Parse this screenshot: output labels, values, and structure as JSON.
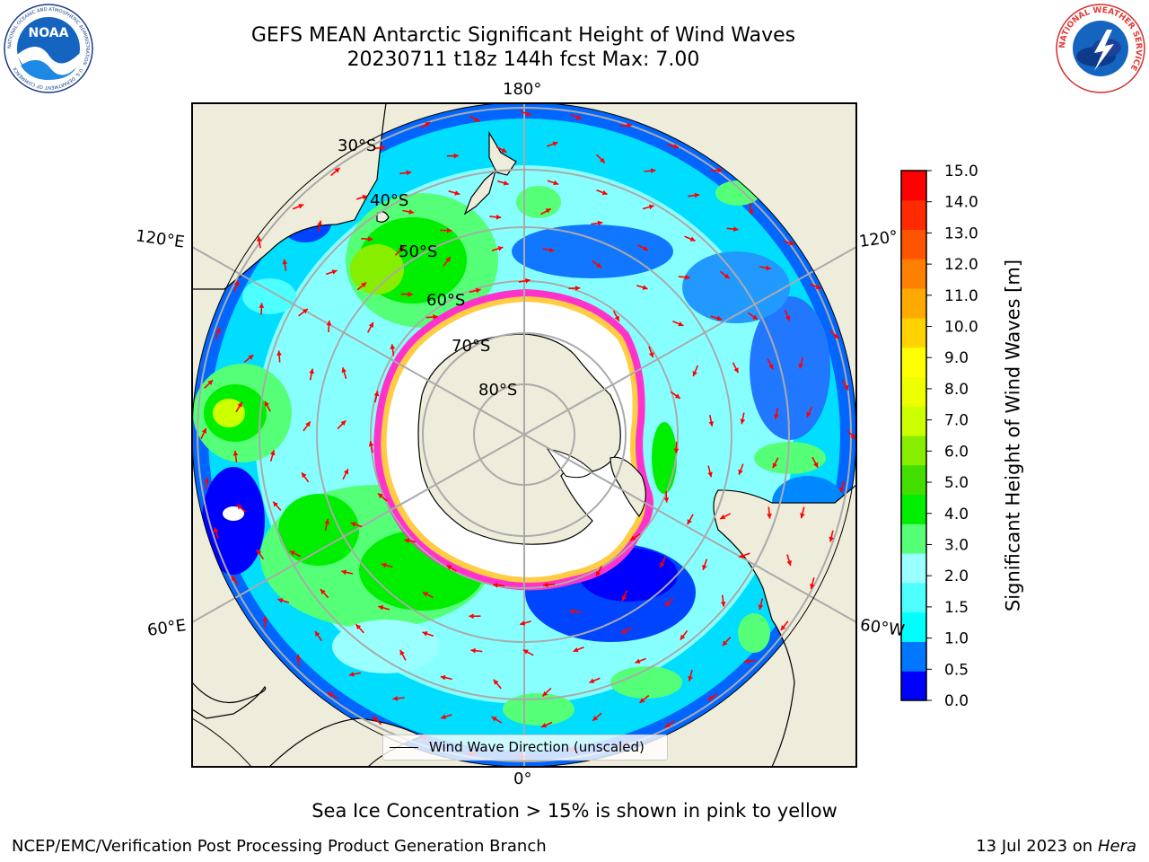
{
  "header": {
    "title_line1": "GEFS MEAN Antarctic Significant Height of Wind Waves",
    "title_line2": "20230711 t18z 144h fcst   Max: 7.00",
    "noaa_logo_text": "NOAA",
    "noaa_ring_text": "NATIONAL OCEANIC AND ATMOSPHERIC ADMINISTRATION · U.S. DEPARTMENT OF COMMERCE",
    "nws_ring_text": "NATIONAL WEATHER SERVICE"
  },
  "map": {
    "projection": "south-polar-stereographic",
    "longitude_labels": [
      "180°",
      "120°E",
      "120°",
      "60°E",
      "60°W",
      "0°"
    ],
    "latitude_labels": [
      "30°S",
      "40°S",
      "50°S",
      "60°S",
      "70°S",
      "80°S"
    ],
    "legend_text": "Wind Wave Direction (unscaled)",
    "colors": {
      "land": "#eeecda",
      "ice_free_ocean_high": "#00ff00",
      "arrow": "#ff0000",
      "sea_ice": "#ff33cc"
    }
  },
  "colorbar": {
    "label": "Significant Height of Wind Waves [m]",
    "tick_labels": [
      "0.0",
      "0.5",
      "1.0",
      "1.5",
      "2.0",
      "3.0",
      "4.0",
      "5.0",
      "6.0",
      "7.0",
      "8.0",
      "9.0",
      "10.0",
      "11.0",
      "12.0",
      "13.0",
      "14.0",
      "15.0"
    ],
    "colors": [
      "#0000ff",
      "#0077ff",
      "#00ffff",
      "#4dffff",
      "#99ffff",
      "#55ff77",
      "#00ee00",
      "#44dd00",
      "#88ee00",
      "#ccff00",
      "#eeff00",
      "#ffff00",
      "#ffd200",
      "#ffaa00",
      "#ff8000",
      "#ff5500",
      "#ff2a00",
      "#ff0000"
    ]
  },
  "footer": {
    "ice_note": "Sea Ice Concentration > 15% is shown in pink to yellow",
    "org": "NCEP/EMC/Verification Post Processing Product Generation Branch",
    "date": "13 Jul 2023 on",
    "system": "Hera"
  }
}
